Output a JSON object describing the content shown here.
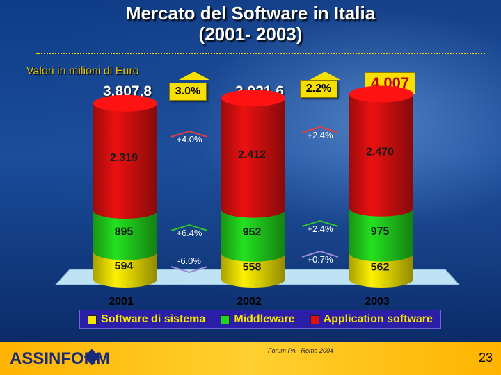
{
  "title_line1": "Mercato del Software in Italia",
  "title_line2": "(2001- 2003)",
  "subtitle": "Valori in milioni di Euro",
  "totals": [
    "3.807,8",
    "3.921,6",
    "4.007"
  ],
  "total_growth": [
    "3.0%",
    "2.2%"
  ],
  "chart_data": {
    "type": "bar",
    "stacked": true,
    "categories": [
      "2001",
      "2002",
      "2003"
    ],
    "series": [
      {
        "name": "Software di sistema",
        "color": "#f2e600",
        "values": [
          594,
          558,
          562
        ],
        "labels": [
          "594",
          "558",
          "562"
        ]
      },
      {
        "name": "Middleware",
        "color": "#22d61e",
        "values": [
          895,
          952,
          975
        ],
        "labels": [
          "895",
          "952",
          "975"
        ]
      },
      {
        "name": "Application software",
        "color": "#e01010",
        "values": [
          2319,
          2412,
          2470
        ],
        "labels": [
          "2.319",
          "2.412",
          "2.470"
        ]
      }
    ],
    "growth": {
      "Application software": [
        "+4.0%",
        "+2.4%"
      ],
      "Middleware": [
        "+6.4%",
        "+2.4%"
      ],
      "Software di sistema": [
        "-6.0%",
        "+0.7%"
      ]
    },
    "legend_position": "bottom"
  },
  "footer": {
    "logo": "ASSINFORM",
    "event": "Forum PA - Roma 2004",
    "page": "23"
  }
}
